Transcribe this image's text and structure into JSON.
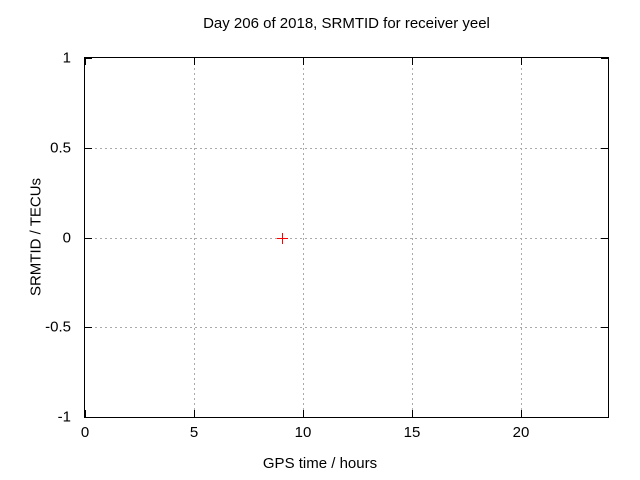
{
  "chart_data": {
    "type": "scatter",
    "title": "Day 206 of 2018, SRMTID for receiver yeel",
    "xlabel": "GPS time / hours",
    "ylabel": "SRMTID / TECUs",
    "xlim": [
      0,
      24
    ],
    "ylim": [
      -1,
      1
    ],
    "xticks": [
      0,
      5,
      10,
      15,
      20
    ],
    "yticks": [
      -1,
      -0.5,
      0,
      0.5,
      1
    ],
    "grid": true,
    "legend": "none",
    "series": [
      {
        "name": "SRMTID",
        "marker": "plus",
        "color": "#ff0000",
        "points": [
          {
            "x": 9.05,
            "y": 0.0
          }
        ]
      }
    ],
    "colors": {
      "background": "#ffffff",
      "axis": "#000000",
      "text": "#000000",
      "grid": "#aaaaaa",
      "marker": "#ff0000"
    }
  }
}
